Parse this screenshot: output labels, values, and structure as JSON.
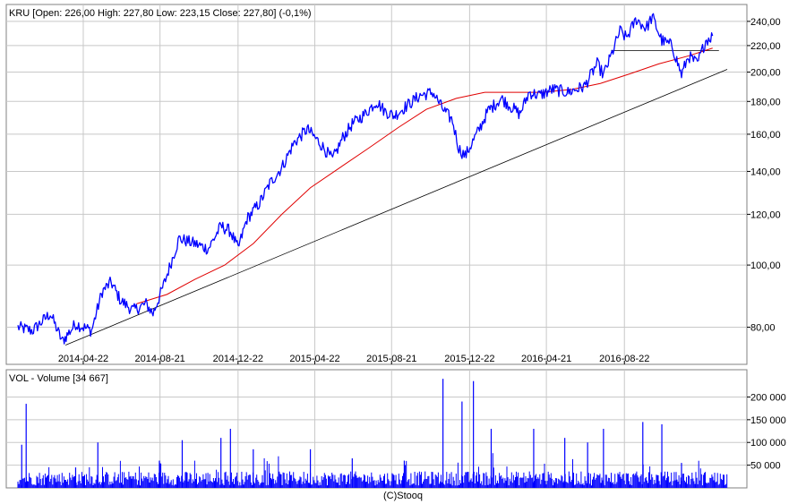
{
  "footer": "(C)Stooq",
  "colors": {
    "price": "#0000ff",
    "sma": "#e00000",
    "trendline": "#000000",
    "volume": "#0000ff",
    "grid": "#c8c8c8",
    "frame": "#808080"
  },
  "chart_data": [
    {
      "type": "line",
      "legend": "KRU [Open: 226,00  High: 227,80  Low: 223,15  Close: 227,80] (-0,1%)",
      "y_scale": "log",
      "ylim": [
        70,
        255
      ],
      "y_ticks": [
        "80,00",
        "100,00",
        "120,00",
        "140,00",
        "160,00",
        "180,00",
        "200,00",
        "220,00",
        "240,00"
      ],
      "y_tick_values": [
        80,
        100,
        120,
        140,
        160,
        180,
        200,
        220,
        240
      ],
      "x_ticks": [
        "2014-04-22",
        "2014-08-21",
        "2014-12-22",
        "2015-04-22",
        "2015-08-21",
        "2015-12-22",
        "2016-04-21",
        "2016-08-22"
      ],
      "xlim": [
        "2014-01-09",
        "2017-01-31"
      ],
      "grid": true,
      "series": [
        {
          "role": "price",
          "x": [
            "2014-01-09",
            "2014-02-01",
            "2014-03-01",
            "2014-03-20",
            "2014-04-10",
            "2014-05-05",
            "2014-05-22",
            "2014-06-05",
            "2014-06-20",
            "2014-07-10",
            "2014-07-30",
            "2014-08-10",
            "2014-08-25",
            "2014-09-20",
            "2014-10-15",
            "2014-11-05",
            "2014-11-25",
            "2014-12-10",
            "2014-12-22",
            "2015-01-05",
            "2015-01-25",
            "2015-02-10",
            "2015-03-01",
            "2015-03-20",
            "2015-04-10",
            "2015-04-30",
            "2015-05-20",
            "2015-06-05",
            "2015-06-20",
            "2015-07-10",
            "2015-07-28",
            "2015-08-10",
            "2015-08-25",
            "2015-09-10",
            "2015-10-05",
            "2015-10-25",
            "2015-11-10",
            "2015-11-25",
            "2015-12-05",
            "2015-12-15",
            "2016-01-05",
            "2016-01-20",
            "2016-02-10",
            "2016-03-10",
            "2016-03-25",
            "2016-04-10",
            "2016-05-01",
            "2016-05-25",
            "2016-06-20",
            "2016-07-10",
            "2016-07-20",
            "2016-08-01",
            "2016-08-15",
            "2016-08-25",
            "2016-09-10",
            "2016-09-25",
            "2016-10-05",
            "2016-10-20",
            "2016-11-05",
            "2016-11-20",
            "2016-12-01",
            "2016-12-15",
            "2016-12-28",
            "2017-01-08"
          ],
          "y": [
            80,
            79,
            84,
            76,
            81,
            79,
            91,
            94,
            88,
            85,
            87,
            84,
            92,
            110,
            108,
            106,
            115,
            113,
            106,
            118,
            125,
            134,
            142,
            155,
            163,
            155,
            146,
            158,
            166,
            172,
            180,
            174,
            171,
            176,
            184,
            186,
            175,
            168,
            152,
            148,
            162,
            174,
            182,
            172,
            186,
            184,
            188,
            186,
            190,
            206,
            198,
            212,
            232,
            226,
            242,
            234,
            244,
            224,
            220,
            198,
            212,
            206,
            224,
            227.8
          ]
        },
        {
          "role": "moving-average",
          "x": [
            "2014-07-15",
            "2014-09-01",
            "2014-10-15",
            "2014-12-01",
            "2015-01-15",
            "2015-03-01",
            "2015-04-15",
            "2015-06-01",
            "2015-07-15",
            "2015-09-01",
            "2015-10-15",
            "2015-12-01",
            "2016-01-15",
            "2016-03-01",
            "2016-04-15",
            "2016-06-01",
            "2016-07-15",
            "2016-09-01",
            "2016-10-15",
            "2016-12-01",
            "2017-01-08"
          ],
          "y": [
            87,
            90,
            95,
            100,
            108,
            120,
            132,
            142,
            152,
            164,
            175,
            182,
            186,
            186,
            186,
            188,
            192,
            199,
            206,
            212,
            218
          ]
        },
        {
          "role": "trendline",
          "x": [
            "2014-03-25",
            "2017-01-31"
          ],
          "y": [
            75,
            202
          ]
        },
        {
          "role": "resistance-line",
          "x": [
            "2016-08-01",
            "2017-01-18"
          ],
          "y": [
            216,
            216
          ]
        }
      ]
    },
    {
      "type": "bar",
      "legend": "VOL - Volume [34 667]",
      "ylim": [
        0,
        260000
      ],
      "y_ticks": [
        "50 000",
        "100 000",
        "150 000",
        "200 000"
      ],
      "y_tick_values": [
        50000,
        100000,
        150000,
        200000
      ],
      "grid": true,
      "spikes": {
        "x": [
          "2014-01-15",
          "2014-01-22",
          "2014-04-10",
          "2014-05-15",
          "2014-08-20",
          "2014-09-25",
          "2014-11-25",
          "2014-12-10",
          "2015-01-15",
          "2015-04-15",
          "2015-06-20",
          "2015-09-10",
          "2015-11-10",
          "2015-12-10",
          "2015-12-28",
          "2016-01-25",
          "2016-04-01",
          "2016-05-20",
          "2016-06-25",
          "2016-07-20",
          "2016-09-20",
          "2016-10-20",
          "2016-11-20"
        ],
        "y": [
          95000,
          185000,
          45000,
          100000,
          60000,
          105000,
          110000,
          130000,
          85000,
          85000,
          65000,
          60000,
          240000,
          190000,
          235000,
          130000,
          130000,
          110000,
          100000,
          130000,
          145000,
          140000,
          55000
        ]
      },
      "baseline_volume": 34667
    }
  ]
}
